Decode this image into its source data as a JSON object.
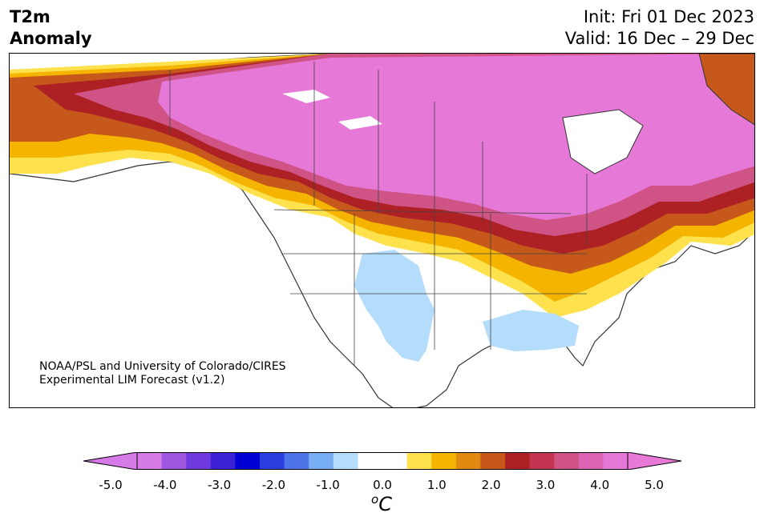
{
  "header": {
    "title_line1": "T2m",
    "title_line2": "Anomaly",
    "init": "Init: Fri 01 Dec 2023",
    "valid": "Valid: 16 Dec – 29 Dec"
  },
  "credit": {
    "line1": "NOAA/PSL and University of Colorado/CIRES",
    "line2": "Experimental LIM Forecast (v1.2)"
  },
  "colorbar": {
    "unit_base": "C",
    "unit_super": "o",
    "tick_labels": [
      "-5.0",
      "-4.0",
      "-3.0",
      "-2.0",
      "-1.0",
      "0.0",
      "1.0",
      "2.0",
      "3.0",
      "4.0",
      "5.0"
    ],
    "colors": [
      "#d67ae8",
      "#9f57e0",
      "#6e3ade",
      "#3b22d6",
      "#0000d2",
      "#2a3ee0",
      "#4f74e8",
      "#78aef3",
      "#b4dcfb",
      "#ffffff",
      "#ffffff",
      "#fee24d",
      "#f4b400",
      "#e08b10",
      "#c5581a",
      "#ad2125",
      "#c23450",
      "#cf5384",
      "#da63b4",
      "#e678d8"
    ],
    "extend_min_color": "#d67ae8",
    "extend_max_color": "#e678d8"
  }
}
